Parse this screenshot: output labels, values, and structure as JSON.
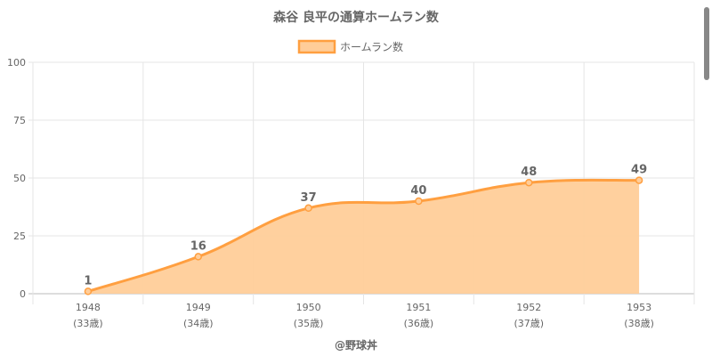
{
  "chart_data": {
    "type": "area",
    "title": "森谷 良平の通算ホームラン数",
    "legend": {
      "label": "ホームラン数",
      "placement": "top"
    },
    "categories": [
      "1948",
      "1949",
      "1950",
      "1951",
      "1952",
      "1953"
    ],
    "sublabels": [
      "(33歳)",
      "(34歳)",
      "(35歳)",
      "(36歳)",
      "(37歳)",
      "(38歳)"
    ],
    "values": [
      1,
      16,
      37,
      40,
      48,
      49
    ],
    "ylim": [
      0,
      100
    ],
    "yticks": [
      0,
      25,
      50,
      75,
      100
    ],
    "grid": true,
    "colors": {
      "line": "#ff9f40",
      "fill": "#ffcd99"
    },
    "credit": "@野球丼"
  }
}
